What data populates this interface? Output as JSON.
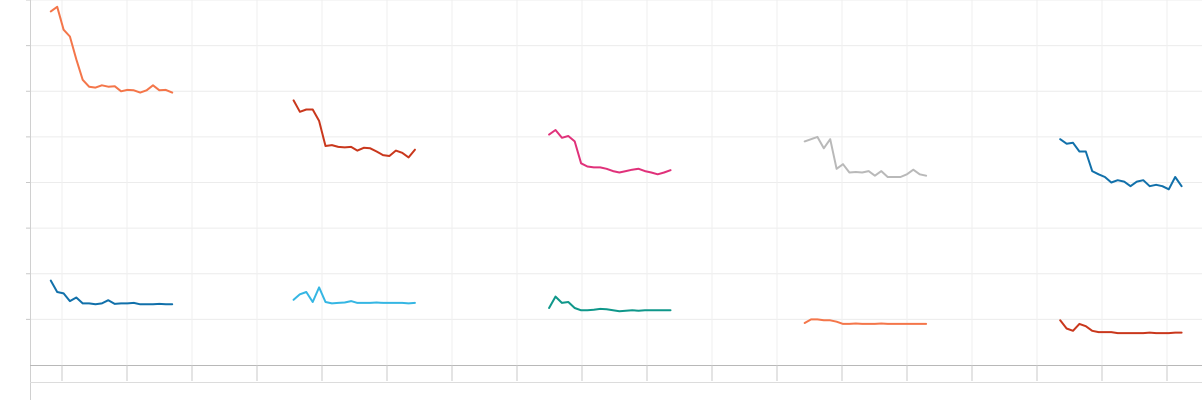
{
  "chart_data": {
    "type": "line",
    "xlim": [
      0,
      90
    ],
    "ylim": [
      0,
      8
    ],
    "grid": true,
    "colors": {
      "orange": "#f4764a",
      "dark_orange": "#c9371c",
      "pink": "#e0317a",
      "grey": "#b9b9b9",
      "blue": "#1170aa",
      "sky": "#35b6e3",
      "teal": "#0f978a"
    },
    "series": [
      {
        "color": "orange",
        "points": [
          [
            1,
            7.75
          ],
          [
            1.5,
            7.85
          ],
          [
            2,
            7.35
          ],
          [
            2.5,
            7.2
          ],
          [
            3,
            6.7
          ],
          [
            3.5,
            6.25
          ],
          [
            4,
            6.1
          ],
          [
            4.5,
            6.08
          ],
          [
            5,
            6.13
          ],
          [
            5.5,
            6.1
          ],
          [
            6,
            6.11
          ],
          [
            6.5,
            6.0
          ],
          [
            7,
            6.03
          ],
          [
            7.5,
            6.02
          ],
          [
            8,
            5.97
          ],
          [
            8.5,
            6.02
          ],
          [
            9,
            6.13
          ],
          [
            9.5,
            6.02
          ],
          [
            10,
            6.03
          ],
          [
            10.5,
            5.97
          ]
        ]
      },
      {
        "color": "blue",
        "points": [
          [
            1,
            1.85
          ],
          [
            1.5,
            1.6
          ],
          [
            2,
            1.57
          ],
          [
            2.5,
            1.4
          ],
          [
            3,
            1.48
          ],
          [
            3.5,
            1.35
          ],
          [
            4,
            1.35
          ],
          [
            4.5,
            1.33
          ],
          [
            5,
            1.35
          ],
          [
            5.5,
            1.42
          ],
          [
            6,
            1.34
          ],
          [
            6.5,
            1.35
          ],
          [
            7,
            1.35
          ],
          [
            7.5,
            1.36
          ],
          [
            8,
            1.33
          ],
          [
            8.5,
            1.33
          ],
          [
            9,
            1.33
          ],
          [
            9.5,
            1.34
          ],
          [
            10,
            1.33
          ],
          [
            10.5,
            1.33
          ]
        ]
      },
      {
        "color": "dark_orange",
        "points": [
          [
            20,
            5.8
          ],
          [
            20.5,
            5.55
          ],
          [
            21,
            5.6
          ],
          [
            21.5,
            5.6
          ],
          [
            22,
            5.35
          ],
          [
            22.5,
            4.8
          ],
          [
            23,
            4.82
          ],
          [
            23.5,
            4.78
          ],
          [
            24,
            4.77
          ],
          [
            24.5,
            4.78
          ],
          [
            25,
            4.7
          ],
          [
            25.5,
            4.76
          ],
          [
            26,
            4.75
          ],
          [
            26.5,
            4.68
          ],
          [
            27,
            4.6
          ],
          [
            27.5,
            4.58
          ],
          [
            28,
            4.7
          ],
          [
            28.5,
            4.65
          ],
          [
            29,
            4.55
          ],
          [
            29.5,
            4.72
          ]
        ]
      },
      {
        "color": "sky",
        "points": [
          [
            20,
            1.43
          ],
          [
            20.5,
            1.55
          ],
          [
            21,
            1.6
          ],
          [
            21.5,
            1.38
          ],
          [
            22,
            1.7
          ],
          [
            22.5,
            1.38
          ],
          [
            23,
            1.35
          ],
          [
            23.5,
            1.36
          ],
          [
            24,
            1.37
          ],
          [
            24.5,
            1.4
          ],
          [
            25,
            1.36
          ],
          [
            25.5,
            1.36
          ],
          [
            26,
            1.36
          ],
          [
            26.5,
            1.37
          ],
          [
            27,
            1.36
          ],
          [
            27.5,
            1.36
          ],
          [
            28,
            1.36
          ],
          [
            28.5,
            1.36
          ],
          [
            29,
            1.35
          ],
          [
            29.5,
            1.36
          ]
        ]
      },
      {
        "color": "pink",
        "points": [
          [
            40,
            5.05
          ],
          [
            40.5,
            5.15
          ],
          [
            41,
            4.98
          ],
          [
            41.5,
            5.02
          ],
          [
            42,
            4.9
          ],
          [
            42.5,
            4.42
          ],
          [
            43,
            4.35
          ],
          [
            43.5,
            4.33
          ],
          [
            44,
            4.33
          ],
          [
            44.5,
            4.3
          ],
          [
            45,
            4.25
          ],
          [
            45.5,
            4.22
          ],
          [
            46,
            4.25
          ],
          [
            46.5,
            4.28
          ],
          [
            47,
            4.3
          ],
          [
            47.5,
            4.25
          ],
          [
            48,
            4.22
          ],
          [
            48.5,
            4.18
          ],
          [
            49,
            4.22
          ],
          [
            49.5,
            4.27
          ]
        ]
      },
      {
        "color": "teal",
        "points": [
          [
            40,
            1.25
          ],
          [
            40.5,
            1.5
          ],
          [
            41,
            1.36
          ],
          [
            41.5,
            1.38
          ],
          [
            42,
            1.25
          ],
          [
            42.5,
            1.2
          ],
          [
            43,
            1.2
          ],
          [
            43.5,
            1.21
          ],
          [
            44,
            1.23
          ],
          [
            44.5,
            1.22
          ],
          [
            45,
            1.2
          ],
          [
            45.5,
            1.18
          ],
          [
            46,
            1.19
          ],
          [
            46.5,
            1.2
          ],
          [
            47,
            1.19
          ],
          [
            47.5,
            1.2
          ],
          [
            48,
            1.2
          ],
          [
            48.5,
            1.2
          ],
          [
            49,
            1.2
          ],
          [
            49.5,
            1.2
          ]
        ]
      },
      {
        "color": "grey",
        "points": [
          [
            60,
            4.9
          ],
          [
            60.5,
            4.95
          ],
          [
            61,
            5.0
          ],
          [
            61.5,
            4.75
          ],
          [
            62,
            4.95
          ],
          [
            62.5,
            4.3
          ],
          [
            63,
            4.4
          ],
          [
            63.5,
            4.22
          ],
          [
            64,
            4.23
          ],
          [
            64.5,
            4.22
          ],
          [
            65,
            4.25
          ],
          [
            65.5,
            4.15
          ],
          [
            66,
            4.25
          ],
          [
            66.5,
            4.12
          ],
          [
            67,
            4.12
          ],
          [
            67.5,
            4.12
          ],
          [
            68,
            4.18
          ],
          [
            68.5,
            4.28
          ],
          [
            69,
            4.18
          ],
          [
            69.5,
            4.15
          ]
        ]
      },
      {
        "color": "orange",
        "points": [
          [
            60,
            0.92
          ],
          [
            60.5,
            1.0
          ],
          [
            61,
            1.0
          ],
          [
            61.5,
            0.98
          ],
          [
            62,
            0.98
          ],
          [
            62.5,
            0.95
          ],
          [
            63,
            0.9
          ],
          [
            63.5,
            0.9
          ],
          [
            64,
            0.91
          ],
          [
            64.5,
            0.9
          ],
          [
            65,
            0.9
          ],
          [
            65.5,
            0.9
          ],
          [
            66,
            0.91
          ],
          [
            66.5,
            0.9
          ],
          [
            67,
            0.9
          ],
          [
            67.5,
            0.9
          ],
          [
            68,
            0.9
          ],
          [
            68.5,
            0.9
          ],
          [
            69,
            0.9
          ],
          [
            69.5,
            0.9
          ]
        ]
      },
      {
        "color": "blue",
        "points": [
          [
            80,
            4.95
          ],
          [
            80.5,
            4.85
          ],
          [
            81,
            4.87
          ],
          [
            81.5,
            4.68
          ],
          [
            82,
            4.68
          ],
          [
            82.5,
            4.25
          ],
          [
            83,
            4.18
          ],
          [
            83.5,
            4.12
          ],
          [
            84,
            4.0
          ],
          [
            84.5,
            4.05
          ],
          [
            85,
            4.02
          ],
          [
            85.5,
            3.92
          ],
          [
            86,
            4.02
          ],
          [
            86.5,
            4.05
          ],
          [
            87,
            3.92
          ],
          [
            87.5,
            3.95
          ],
          [
            88,
            3.92
          ],
          [
            88.5,
            3.85
          ],
          [
            89,
            4.12
          ],
          [
            89.5,
            3.92
          ]
        ]
      },
      {
        "color": "dark_orange",
        "points": [
          [
            80,
            0.98
          ],
          [
            80.5,
            0.8
          ],
          [
            81,
            0.75
          ],
          [
            81.5,
            0.9
          ],
          [
            82,
            0.85
          ],
          [
            82.5,
            0.75
          ],
          [
            83,
            0.72
          ],
          [
            83.5,
            0.72
          ],
          [
            84,
            0.72
          ],
          [
            84.5,
            0.7
          ],
          [
            85,
            0.7
          ],
          [
            85.5,
            0.7
          ],
          [
            86,
            0.7
          ],
          [
            86.5,
            0.7
          ],
          [
            87,
            0.71
          ],
          [
            87.5,
            0.7
          ],
          [
            88,
            0.7
          ],
          [
            88.5,
            0.7
          ],
          [
            89,
            0.71
          ],
          [
            89.5,
            0.71
          ]
        ]
      }
    ]
  }
}
